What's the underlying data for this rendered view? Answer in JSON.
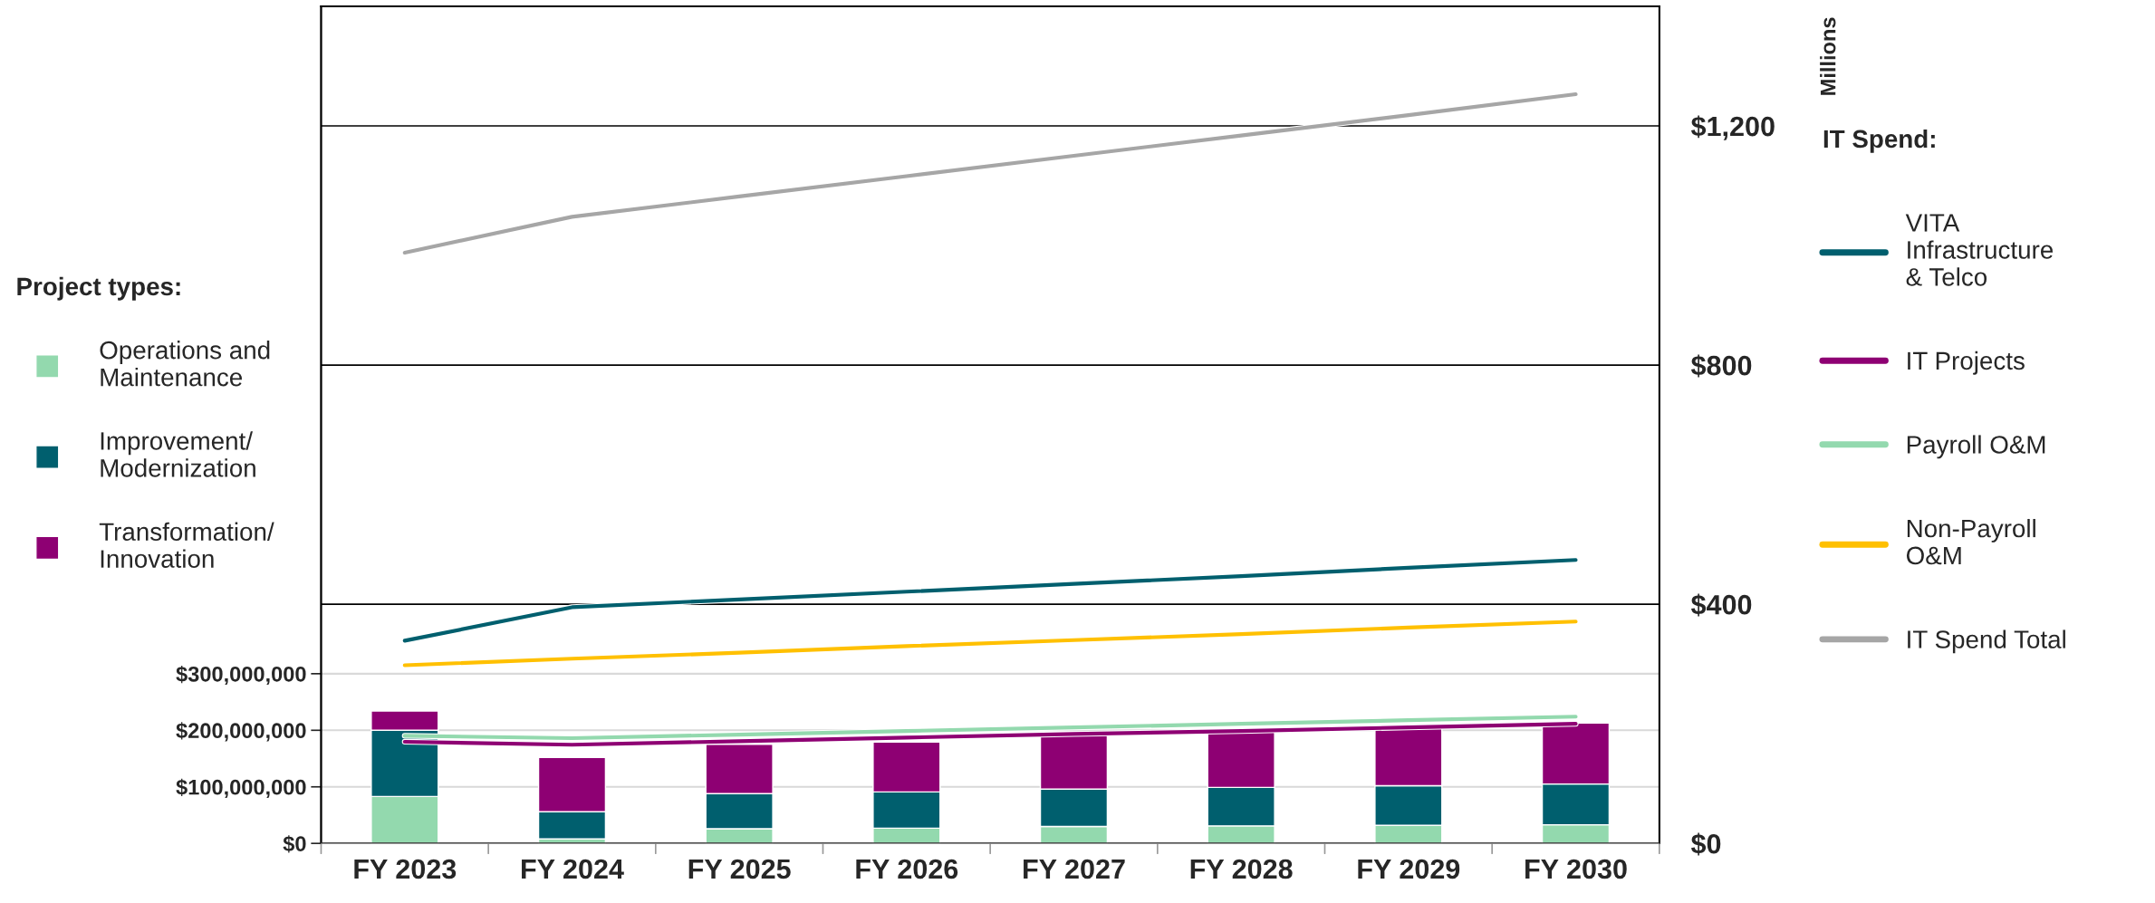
{
  "chart_data": {
    "type": "bar",
    "stacked": true,
    "categories": [
      "FY 2023",
      "FY 2024",
      "FY 2025",
      "FY 2026",
      "FY 2027",
      "FY 2028",
      "FY 2029",
      "FY 2030"
    ],
    "series": [
      {
        "name": "Operations and Maintenance",
        "color": "#93d9ae",
        "values": [
          83000000,
          8000000,
          26000000,
          27000000,
          30000000,
          31000000,
          32000000,
          33000000
        ]
      },
      {
        "name": "Improvement/ Modernization",
        "color": "#005f6e",
        "values": [
          117000000,
          48000000,
          62000000,
          64000000,
          66000000,
          68000000,
          70000000,
          72000000
        ]
      },
      {
        "name": "Transformation/ Innovation",
        "color": "#8e0073",
        "values": [
          34000000,
          96000000,
          87000000,
          88000000,
          98000000,
          103000000,
          106000000,
          108000000
        ]
      },
      {
        "name": "VITA Infrastructure & Telco",
        "type": "line",
        "axis": "y2",
        "color": "#005f6e",
        "values": [
          339,
          395,
          408,
          421,
          434,
          447,
          461,
          474
        ]
      },
      {
        "name": "IT Projects",
        "type": "line",
        "axis": "y2",
        "color": "#8e0073",
        "values": [
          170,
          165,
          171,
          177,
          183,
          188,
          194,
          200
        ]
      },
      {
        "name": "Payroll O&M",
        "type": "line",
        "axis": "y2",
        "color": "#93d9ae",
        "values": [
          180,
          176,
          182,
          188,
          194,
          200,
          206,
          212
        ]
      },
      {
        "name": "Non-Payroll O&M",
        "type": "line",
        "axis": "y2",
        "color": "#ffc000",
        "values": [
          298,
          309,
          319,
          330,
          340,
          350,
          361,
          371
        ]
      },
      {
        "name": "IT Spend Total",
        "type": "line",
        "axis": "y2",
        "color": "#a6a6a6",
        "values": [
          988,
          1048,
          1082,
          1116,
          1150,
          1184,
          1218,
          1253
        ]
      }
    ],
    "ylim": [
      0,
      1480000000
    ],
    "yticks": [
      {
        "value": 0,
        "label": "$0"
      },
      {
        "value": 100000000,
        "label": "$100,000,000"
      },
      {
        "value": 200000000,
        "label": "$200,000,000"
      },
      {
        "value": 300000000,
        "label": "$300,000,000"
      }
    ],
    "y2lim": [
      0,
      1400
    ],
    "y2ticks": [
      {
        "value": 0,
        "label": "$0"
      },
      {
        "value": 400,
        "label": "$400"
      },
      {
        "value": 800,
        "label": "$800"
      },
      {
        "value": 1200,
        "label": "$1,200"
      }
    ],
    "y2label": "Millions",
    "legend_title": [
      "Project types:",
      "IT Spend:"
    ],
    "legend": [
      "left",
      "right"
    ],
    "grid": "y"
  }
}
